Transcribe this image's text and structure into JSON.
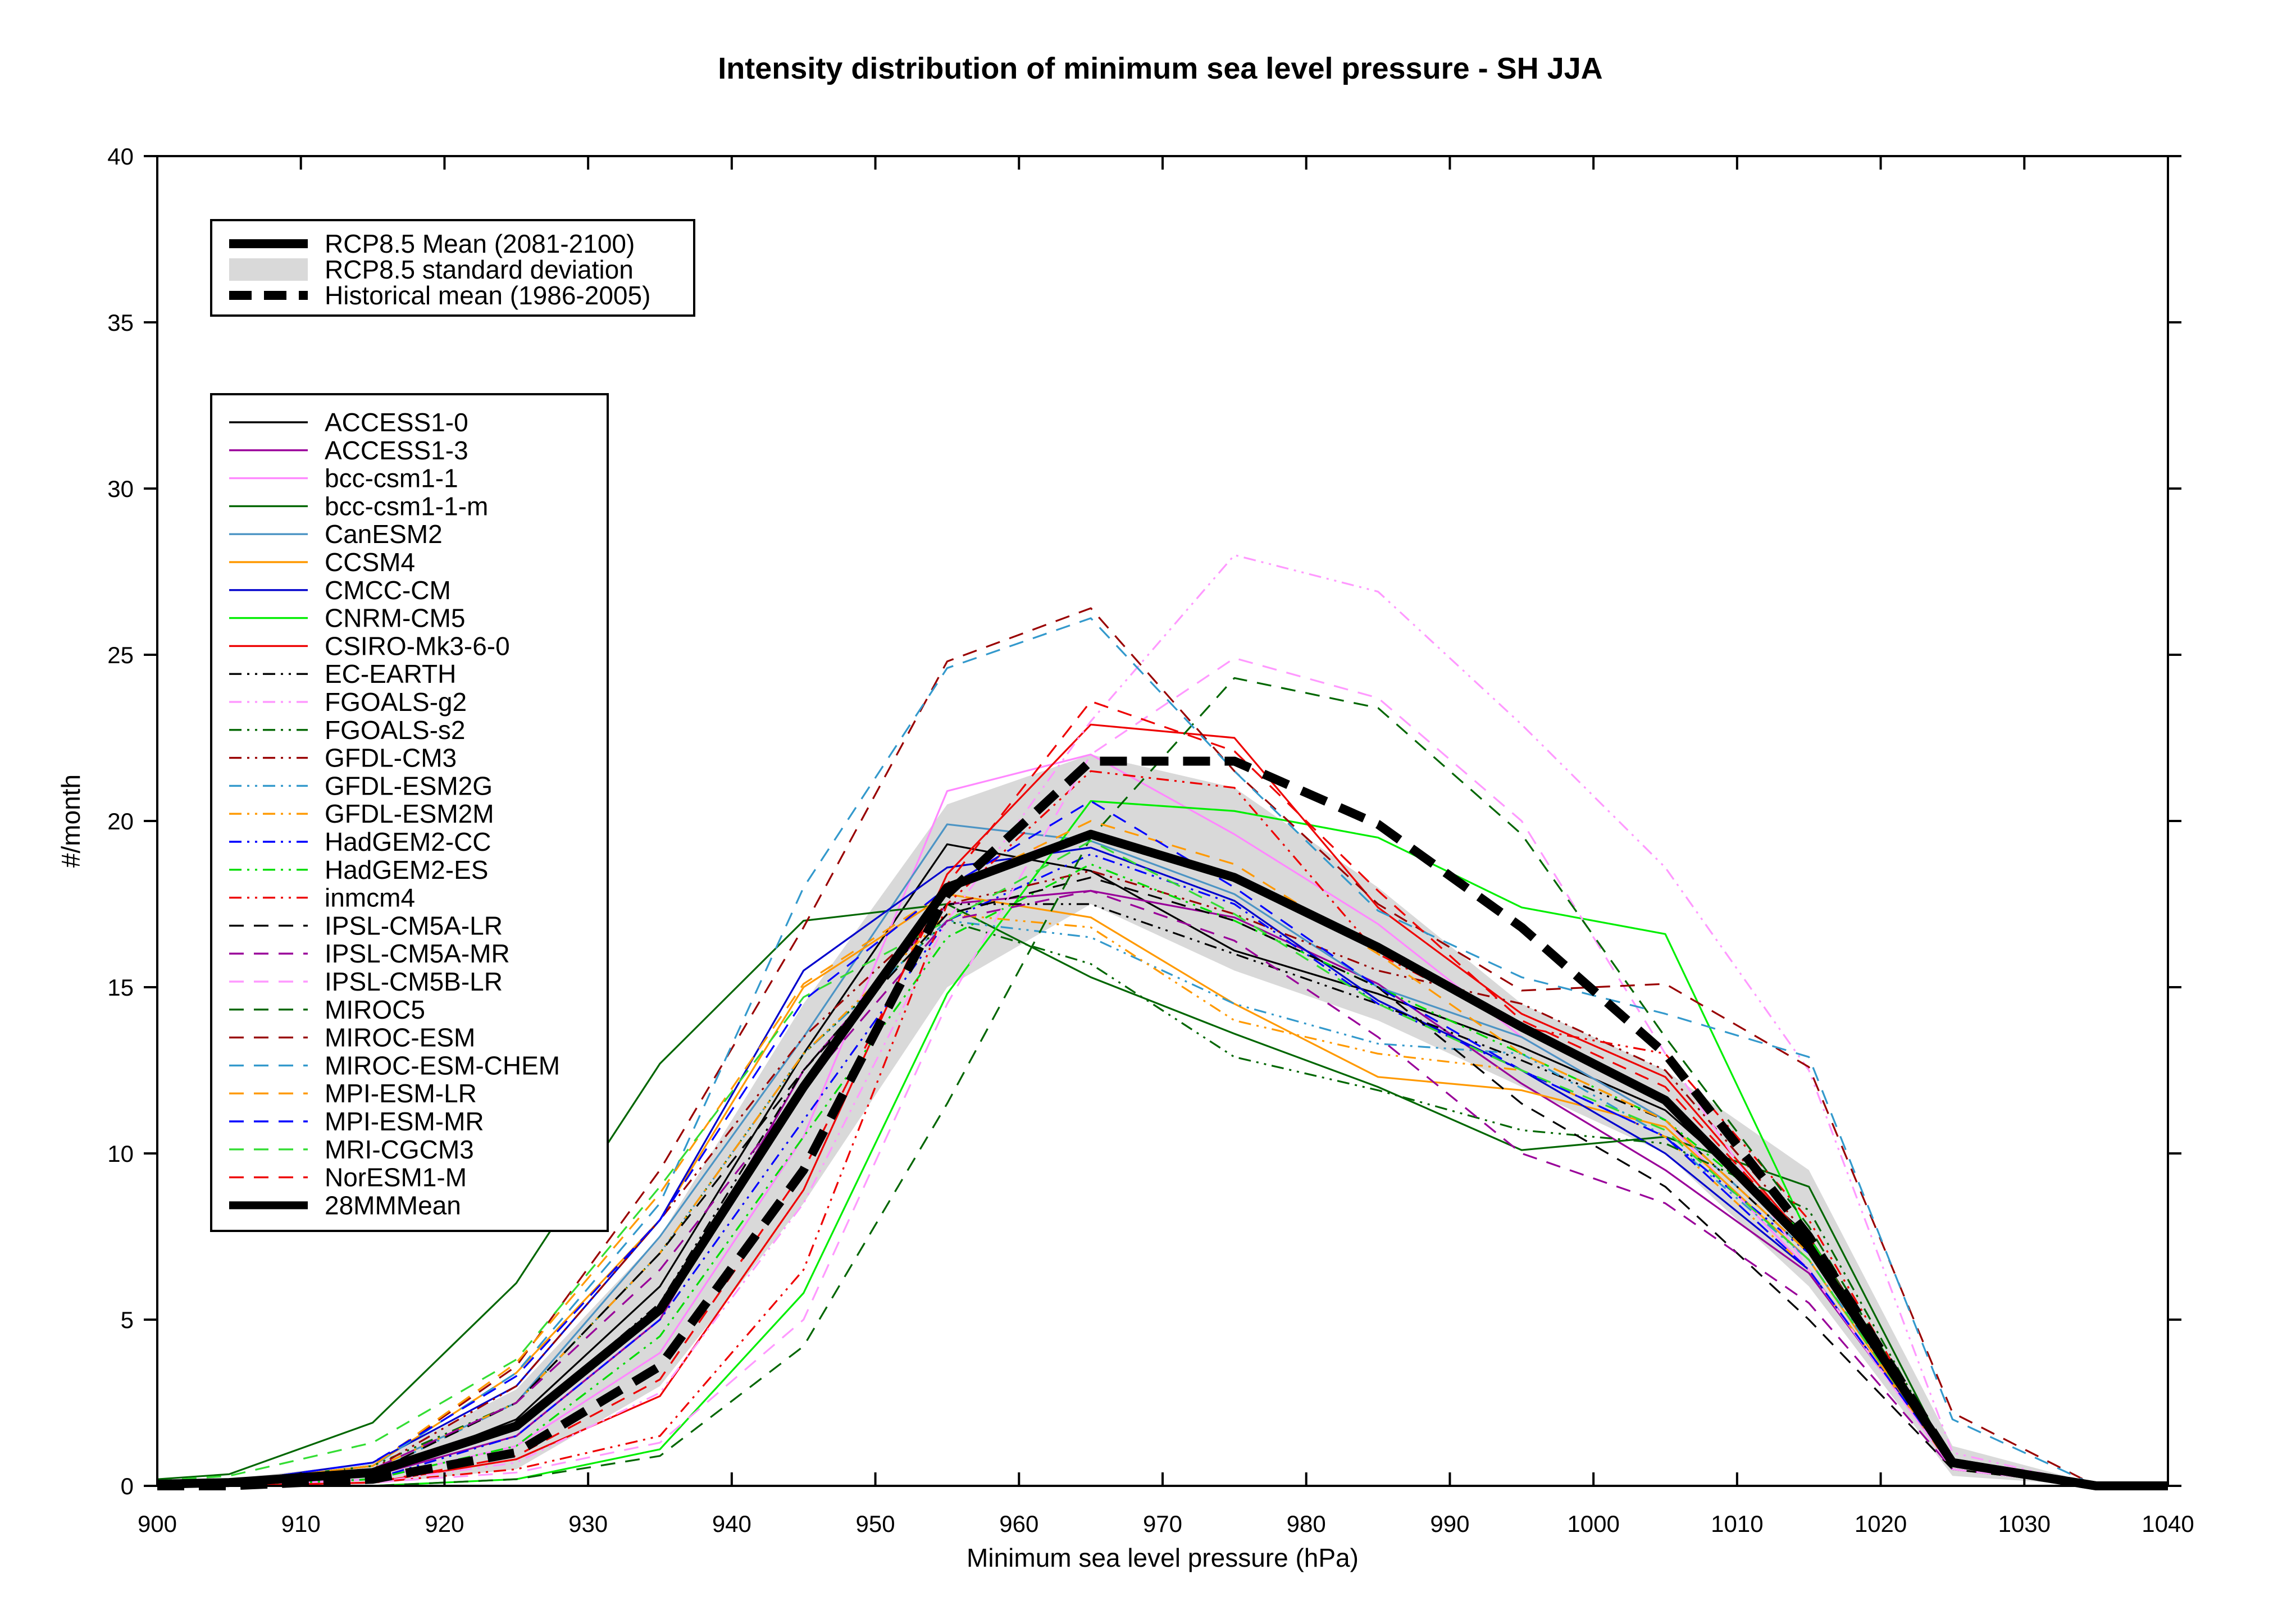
{
  "chart_data": {
    "type": "line",
    "title": "Intensity distribution of minimum sea level pressure - SH JJA",
    "xlabel": "Minimum sea level pressure (hPa)",
    "ylabel": "#/month",
    "xlim": [
      900,
      1040
    ],
    "ylim": [
      0,
      40
    ],
    "xticks": [
      900,
      910,
      920,
      930,
      940,
      950,
      960,
      970,
      980,
      990,
      1000,
      1010,
      1020,
      1030,
      1040
    ],
    "yticks": [
      0,
      5,
      10,
      15,
      20,
      25,
      30,
      35,
      40
    ],
    "grid": false,
    "legend_summary": [
      {
        "label": "RCP8.5 Mean (2081-2100)",
        "color": "#000000",
        "style": "solid",
        "width": "thick"
      },
      {
        "label": "RCP8.5 standard deviation",
        "color": "#d9d9d9",
        "style": "band"
      },
      {
        "label": "Historical mean (1986-2005)",
        "color": "#000000",
        "style": "dashed",
        "width": "thick"
      }
    ],
    "x": [
      900,
      905,
      915,
      925,
      935,
      945,
      955,
      965,
      975,
      985,
      995,
      1005,
      1015,
      1025,
      1035,
      1040
    ],
    "std_band": {
      "upper": [
        0.15,
        0.2,
        0.7,
        2.9,
        7.5,
        14.5,
        20.5,
        22.0,
        21.0,
        18.0,
        14.5,
        12.5,
        9.5,
        1.2,
        0.05,
        0.02
      ],
      "lower": [
        0.0,
        0.0,
        0.05,
        0.5,
        3.0,
        8.5,
        15.0,
        17.5,
        15.5,
        14.0,
        12.0,
        10.0,
        6.0,
        0.3,
        0.0,
        0.0
      ]
    },
    "summary_series": [
      {
        "name": "RCP8.5 Mean (2081-2100)",
        "color": "#000000",
        "style": "solid",
        "values": [
          0.05,
          0.1,
          0.4,
          1.8,
          5.3,
          12.0,
          18.0,
          19.6,
          18.3,
          16.2,
          13.8,
          11.6,
          7.2,
          0.7,
          0.0,
          0.0
        ]
      },
      {
        "name": "Historical mean (1986-2005)",
        "color": "#000000",
        "style": "dashed",
        "values": [
          0.0,
          0.0,
          0.2,
          1.0,
          3.6,
          9.5,
          17.8,
          21.8,
          21.8,
          19.9,
          16.8,
          13.0,
          7.5,
          0.7,
          0.0,
          0.0
        ]
      }
    ],
    "series": [
      {
        "name": "ACCESS1-0",
        "color": "#000000",
        "style": "solid",
        "values": [
          0.0,
          0.1,
          0.3,
          2.0,
          6.0,
          13.0,
          19.3,
          18.5,
          16.1,
          14.8,
          13.2,
          11.3,
          7.5,
          0.8,
          0.0,
          0.0
        ]
      },
      {
        "name": "ACCESS1-3",
        "color": "#990099",
        "style": "solid",
        "values": [
          0.0,
          0.1,
          0.3,
          1.5,
          5.0,
          12.5,
          17.5,
          17.9,
          17.1,
          15.1,
          12.1,
          9.5,
          6.4,
          0.6,
          0.0,
          0.0
        ]
      },
      {
        "name": "bcc-csm1-1",
        "color": "#ff88ff",
        "style": "solid",
        "values": [
          0.0,
          0.0,
          0.2,
          1.2,
          4.0,
          10.5,
          20.9,
          22.0,
          19.6,
          16.9,
          13.5,
          11.0,
          6.5,
          0.5,
          0.0,
          0.0
        ]
      },
      {
        "name": "bcc-csm1-1-m",
        "color": "#006600",
        "style": "solid",
        "values": [
          0.2,
          0.35,
          1.9,
          6.1,
          12.7,
          17.0,
          17.5,
          15.3,
          13.6,
          12.0,
          10.1,
          10.5,
          9.0,
          0.6,
          0.0,
          0.0
        ]
      },
      {
        "name": "CanESM2",
        "color": "#4c94c4",
        "style": "solid",
        "values": [
          0.0,
          0.1,
          0.5,
          2.5,
          7.5,
          13.5,
          19.9,
          19.4,
          17.8,
          15.0,
          13.5,
          11.0,
          7.0,
          0.6,
          0.0,
          0.0
        ]
      },
      {
        "name": "CCSM4",
        "color": "#ff9900",
        "style": "solid",
        "values": [
          0.0,
          0.1,
          0.6,
          3.4,
          8.0,
          15.0,
          17.8,
          17.1,
          14.5,
          12.3,
          11.9,
          10.8,
          6.8,
          0.5,
          0.0,
          0.0
        ]
      },
      {
        "name": "CMCC-CM",
        "color": "#0000cc",
        "style": "solid",
        "values": [
          0.0,
          0.1,
          0.7,
          3.0,
          8.0,
          15.5,
          18.6,
          19.2,
          17.6,
          14.6,
          12.5,
          10.0,
          6.5,
          0.6,
          0.0,
          0.0
        ]
      },
      {
        "name": "CNRM-CM5",
        "color": "#00ee00",
        "style": "solid",
        "values": [
          0.0,
          0.0,
          0.0,
          0.2,
          1.1,
          5.8,
          14.8,
          20.6,
          20.3,
          19.5,
          17.4,
          16.6,
          7.5,
          0.5,
          0.0,
          0.0
        ]
      },
      {
        "name": "CSIRO-Mk3-6-0",
        "color": "#ee0000",
        "style": "solid",
        "values": [
          0.0,
          0.0,
          0.1,
          0.8,
          2.7,
          8.9,
          18.4,
          22.9,
          22.5,
          17.4,
          14.2,
          12.3,
          7.3,
          0.6,
          0.0,
          0.0
        ]
      },
      {
        "name": "EC-EARTH",
        "color": "#000000",
        "style": "dashdotdot",
        "values": [
          0.0,
          0.1,
          0.3,
          1.8,
          5.5,
          12.5,
          17.5,
          17.5,
          16.0,
          14.5,
          12.8,
          11.0,
          7.0,
          0.6,
          0.0,
          0.0
        ]
      },
      {
        "name": "FGOALS-g2",
        "color": "#ff99ff",
        "style": "dashdotdot",
        "values": [
          0.0,
          0.0,
          0.1,
          0.7,
          2.8,
          8.5,
          17.0,
          23.0,
          28.0,
          26.9,
          22.9,
          18.6,
          12.5,
          1.0,
          0.0,
          0.0
        ]
      },
      {
        "name": "FGOALS-s2",
        "color": "#006600",
        "style": "dashdotdot",
        "values": [
          0.0,
          0.1,
          0.6,
          2.5,
          7.0,
          13.0,
          17.0,
          15.7,
          12.9,
          11.9,
          10.7,
          10.3,
          8.3,
          0.6,
          0.0,
          0.0
        ]
      },
      {
        "name": "GFDL-CM3",
        "color": "#990000",
        "style": "dashdotdot",
        "values": [
          0.0,
          0.1,
          0.5,
          3.0,
          8.0,
          13.5,
          17.5,
          18.5,
          17.2,
          15.5,
          14.5,
          12.5,
          7.5,
          0.7,
          0.0,
          0.0
        ]
      },
      {
        "name": "GFDL-ESM2G",
        "color": "#3399cc",
        "style": "dashdotdot",
        "values": [
          0.0,
          0.1,
          0.4,
          2.5,
          7.0,
          13.0,
          17.0,
          16.5,
          14.5,
          13.3,
          13.0,
          10.5,
          6.8,
          0.7,
          0.0,
          0.0
        ]
      },
      {
        "name": "GFDL-ESM2M",
        "color": "#ff9900",
        "style": "dashdotdot",
        "values": [
          0.0,
          0.1,
          0.5,
          2.5,
          7.0,
          13.0,
          17.2,
          16.8,
          14.0,
          13.0,
          12.5,
          10.5,
          6.5,
          0.6,
          0.0,
          0.0
        ]
      },
      {
        "name": "HadGEM2-CC",
        "color": "#0000ff",
        "style": "dashdotdot",
        "values": [
          0.0,
          0.0,
          0.2,
          1.5,
          5.0,
          11.0,
          17.0,
          19.0,
          17.5,
          14.5,
          12.5,
          10.5,
          7.0,
          0.6,
          0.0,
          0.0
        ]
      },
      {
        "name": "HadGEM2-ES",
        "color": "#00dd00",
        "style": "dashdotdot",
        "values": [
          0.0,
          0.0,
          0.2,
          1.2,
          4.5,
          10.5,
          16.5,
          18.7,
          17.0,
          15.0,
          13.0,
          11.0,
          7.5,
          0.6,
          0.0,
          0.0
        ]
      },
      {
        "name": "inmcm4",
        "color": "#ee0000",
        "style": "dashdotdot",
        "values": [
          0.0,
          0.0,
          0.1,
          0.5,
          1.5,
          6.5,
          17.5,
          21.5,
          21.0,
          16.0,
          13.8,
          13.0,
          8.0,
          0.6,
          0.0,
          0.0
        ]
      },
      {
        "name": "IPSL-CM5A-LR",
        "color": "#000000",
        "style": "dashed",
        "values": [
          0.0,
          0.1,
          0.4,
          2.5,
          7.0,
          12.5,
          17.2,
          18.3,
          17.0,
          15.0,
          11.5,
          9.0,
          5.0,
          0.5,
          0.0,
          0.0
        ]
      },
      {
        "name": "IPSL-CM5A-MR",
        "color": "#990099",
        "style": "dashed",
        "values": [
          0.0,
          0.1,
          0.5,
          2.5,
          6.5,
          12.0,
          17.0,
          17.9,
          16.4,
          13.5,
          10.0,
          8.5,
          5.5,
          0.5,
          0.0,
          0.0
        ]
      },
      {
        "name": "IPSL-CM5B-LR",
        "color": "#ff99ff",
        "style": "dashed",
        "values": [
          0.0,
          0.0,
          0.1,
          0.4,
          1.3,
          5.0,
          14.5,
          22.0,
          24.9,
          23.7,
          20.0,
          13.0,
          6.5,
          0.5,
          0.0,
          0.0
        ]
      },
      {
        "name": "MIROC5",
        "color": "#006600",
        "style": "dashed",
        "values": [
          0.0,
          0.0,
          0.0,
          0.2,
          0.9,
          4.2,
          11.5,
          19.5,
          24.3,
          23.4,
          19.6,
          13.5,
          7.8,
          0.6,
          0.0,
          0.0
        ]
      },
      {
        "name": "MIROC-ESM",
        "color": "#990000",
        "style": "dashed",
        "values": [
          0.0,
          0.1,
          0.6,
          3.6,
          9.5,
          16.8,
          24.8,
          26.4,
          21.5,
          17.5,
          14.9,
          15.1,
          12.6,
          2.2,
          0.0,
          0.0
        ]
      },
      {
        "name": "MIROC-ESM-CHEM",
        "color": "#3399cc",
        "style": "dashed",
        "values": [
          0.0,
          0.1,
          0.6,
          3.4,
          8.5,
          18.0,
          24.6,
          26.1,
          21.5,
          17.3,
          15.3,
          14.2,
          12.9,
          2.0,
          0.0,
          0.0
        ]
      },
      {
        "name": "MPI-ESM-LR",
        "color": "#ff9900",
        "style": "dashed",
        "values": [
          0.0,
          0.1,
          0.6,
          3.7,
          8.8,
          15.1,
          17.9,
          20.0,
          18.7,
          16.0,
          13.0,
          11.0,
          7.0,
          0.6,
          0.0,
          0.0
        ]
      },
      {
        "name": "MPI-ESM-MR",
        "color": "#0000ff",
        "style": "dashed",
        "values": [
          0.0,
          0.1,
          0.7,
          3.3,
          8.0,
          14.6,
          18.0,
          20.6,
          18.0,
          15.0,
          12.5,
          10.5,
          6.5,
          0.6,
          0.0,
          0.0
        ]
      },
      {
        "name": "MRI-CGCM3",
        "color": "#33dd33",
        "style": "dashed",
        "values": [
          0.15,
          0.3,
          1.3,
          3.8,
          9.0,
          14.7,
          17.0,
          19.4,
          17.2,
          14.5,
          12.5,
          10.7,
          6.8,
          0.6,
          0.0,
          0.0
        ]
      },
      {
        "name": "NorESM1-M",
        "color": "#ee0000",
        "style": "dashed",
        "values": [
          0.0,
          0.0,
          0.1,
          0.9,
          3.2,
          9.5,
          18.1,
          23.6,
          22.1,
          17.9,
          14.0,
          12.0,
          7.3,
          0.6,
          0.0,
          0.0
        ]
      },
      {
        "name": "28MMMean",
        "color": "#000000",
        "style": "solid",
        "thick": true,
        "values": [
          0.05,
          0.1,
          0.4,
          1.8,
          5.3,
          12.0,
          18.0,
          19.6,
          18.3,
          16.2,
          13.8,
          11.6,
          7.2,
          0.7,
          0.0,
          0.0
        ]
      }
    ]
  }
}
